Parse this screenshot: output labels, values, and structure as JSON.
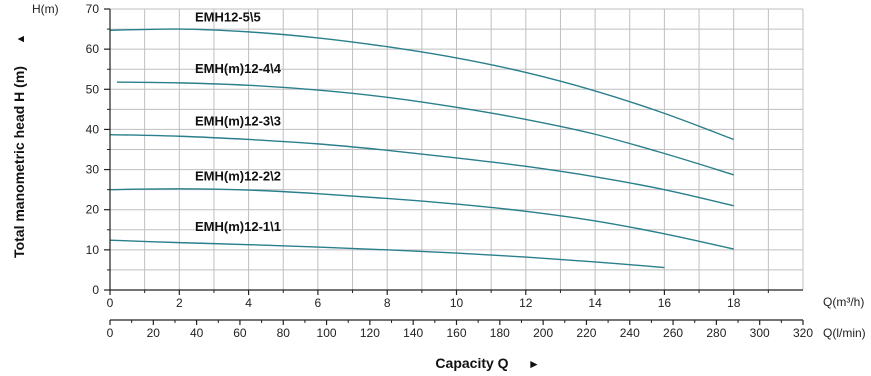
{
  "chart_data": {
    "type": "line",
    "ylabel": "Total manometric head H (m)",
    "xlabel": "Capacity Q",
    "y_unit": "H(m)",
    "x_unit_top": "Q(m³/h)",
    "x_unit_bottom": "Q(l/min)",
    "ylim": [
      0,
      70
    ],
    "xlim": [
      0,
      20
    ],
    "x2lim": [
      0,
      320
    ],
    "y_ticks": [
      "0",
      "10",
      "20",
      "30",
      "40",
      "50",
      "60",
      "70"
    ],
    "x_ticks": [
      "0",
      "2",
      "4",
      "6",
      "8",
      "10",
      "12",
      "14",
      "16",
      "18"
    ],
    "x2_ticks": [
      "0",
      "20",
      "40",
      "60",
      "80",
      "100",
      "120",
      "140",
      "160",
      "180",
      "200",
      "220",
      "240",
      "260",
      "280",
      "300",
      "320"
    ],
    "grid": true,
    "arrow_glyph": "▲",
    "x_arrow_glyph": "►",
    "series": [
      {
        "name": "EMH12-5\\5",
        "x": [
          0,
          2,
          4,
          6,
          8,
          10,
          12,
          14,
          16,
          18
        ],
        "y": [
          64.7,
          65.0,
          64.3,
          62.8,
          60.6,
          57.8,
          54.2,
          49.6,
          44.0,
          37.5
        ]
      },
      {
        "name": "EMH(m)12-4\\4",
        "x": [
          0.2,
          2,
          4,
          6,
          8,
          10,
          12,
          14,
          16,
          18
        ],
        "y": [
          51.8,
          51.6,
          51.0,
          49.8,
          48.0,
          45.5,
          42.5,
          38.8,
          34.0,
          28.7
        ]
      },
      {
        "name": "EMH(m)12-3\\3",
        "x": [
          0,
          2,
          4,
          6,
          8,
          10,
          12,
          14,
          16,
          18
        ],
        "y": [
          38.7,
          38.3,
          37.5,
          36.4,
          34.8,
          32.9,
          30.8,
          28.2,
          25.0,
          21.0
        ]
      },
      {
        "name": "EMH(m)12-2\\2",
        "x": [
          0,
          2,
          4,
          6,
          8,
          10,
          12,
          14,
          16,
          18
        ],
        "y": [
          25.0,
          25.2,
          24.9,
          24.0,
          22.8,
          21.4,
          19.6,
          17.2,
          14.0,
          10.2
        ]
      },
      {
        "name": "EMH(m)12-1\\1",
        "x": [
          0,
          2,
          4,
          6,
          8,
          10,
          12,
          14,
          16
        ],
        "y": [
          12.4,
          11.8,
          11.3,
          10.7,
          10.0,
          9.2,
          8.2,
          7.0,
          5.6
        ]
      }
    ]
  },
  "colors": {
    "curve": "#2a7f8c",
    "axis": "#222222",
    "grid": "#bfbfbf",
    "text": "#111111"
  }
}
